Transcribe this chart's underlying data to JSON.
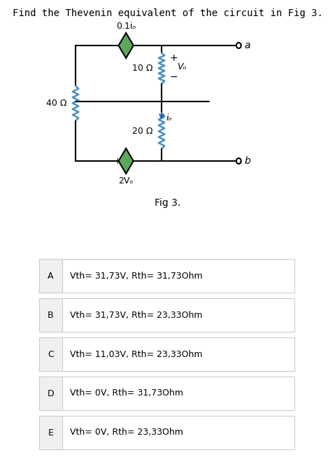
{
  "title": "Find the Thevenin equivalent of the circuit in Fig 3.",
  "fig_label": "Fig 3.",
  "background_color": "#ffffff",
  "circuit": {
    "top_label": "0.1iₒ",
    "left_resistor": "40 Ω",
    "mid_resistor": "10 Ω",
    "bot_resistor": "20 Ω",
    "source_label": "2Vₒ",
    "vo_label": "Vₒ",
    "io_label": "iₒ",
    "terminal_a": "a",
    "terminal_b": "b"
  },
  "options": [
    {
      "letter": "A",
      "text": "Vth= 31,73V, Rth= 31,73Ohm",
      "highlight": false
    },
    {
      "letter": "B",
      "text": "Vth= 31,73V, Rth= 23,33Ohm",
      "highlight": false
    },
    {
      "letter": "C",
      "text": "Vth= 11,03V, Rth= 23,33Ohm",
      "highlight": false
    },
    {
      "letter": "D",
      "text": "Vth= 0V, Rth= 31,73Ohm",
      "highlight": false
    },
    {
      "letter": "E",
      "text": "Vth= 0V, Rth= 23,33Ohm",
      "highlight": false
    }
  ],
  "colors": {
    "wire": "#000000",
    "resistor": "#4a90c4",
    "diamond_fill": "#5ba85b",
    "diamond_stroke": "#000000",
    "terminal": "#000000",
    "text": "#000000",
    "option_box": "#e0e0e0",
    "option_border": "#cccccc",
    "arrow_color": "#2266aa"
  }
}
